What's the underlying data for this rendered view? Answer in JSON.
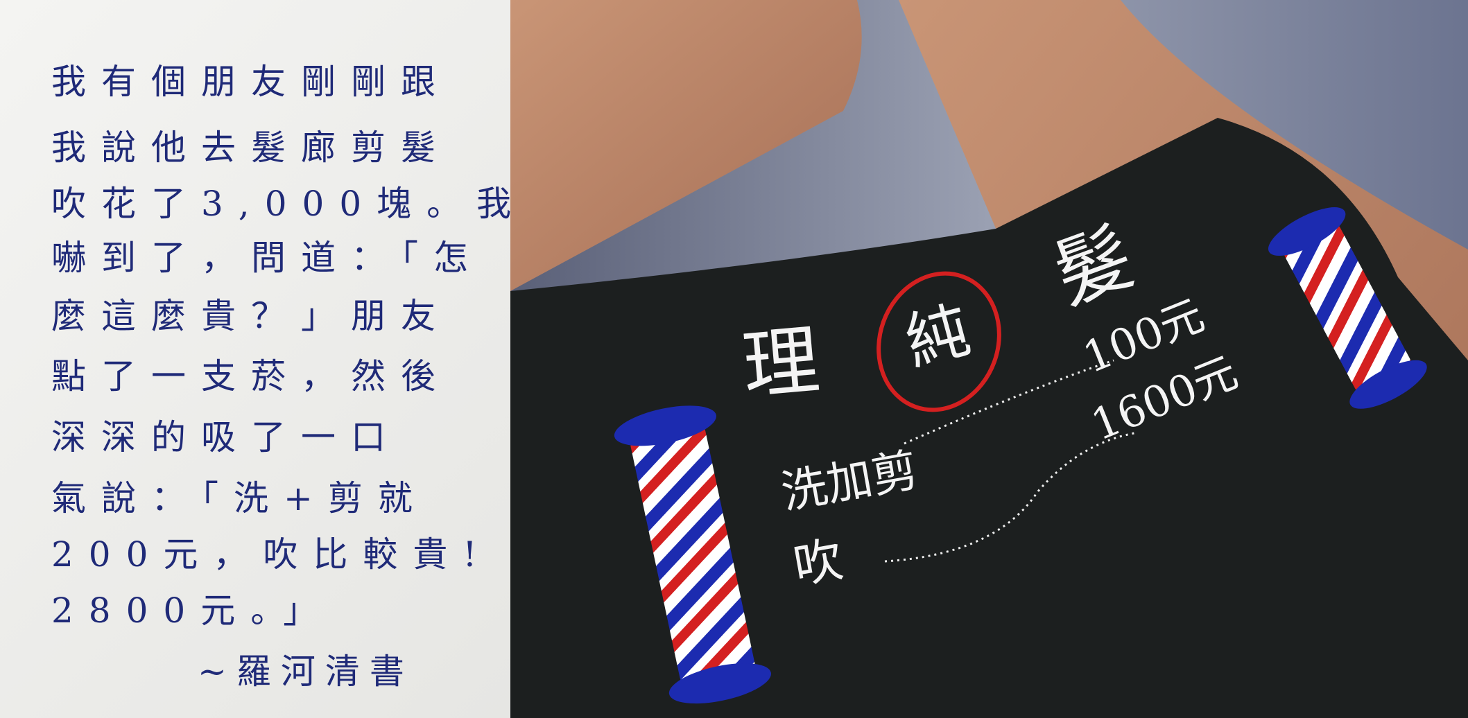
{
  "note": {
    "lines": [
      "我有個朋友剛剛跟",
      "我說他去髮廊剪髮",
      "吹花了3,000塊。我",
      "嚇到了，問道：「怎",
      "麼這麼貴？」朋友",
      "點了一支菸，然後",
      "深深的吸了一口",
      "氣說：「洗+剪就",
      "200元，吹比較貴!",
      "2800元。」"
    ],
    "signature": "~羅河清書"
  },
  "shirt": {
    "logo": [
      "理",
      "純",
      "髮"
    ],
    "menu": [
      {
        "item": "洗加剪",
        "price": "100元"
      },
      {
        "item": "吹",
        "price": "1600元"
      }
    ]
  }
}
